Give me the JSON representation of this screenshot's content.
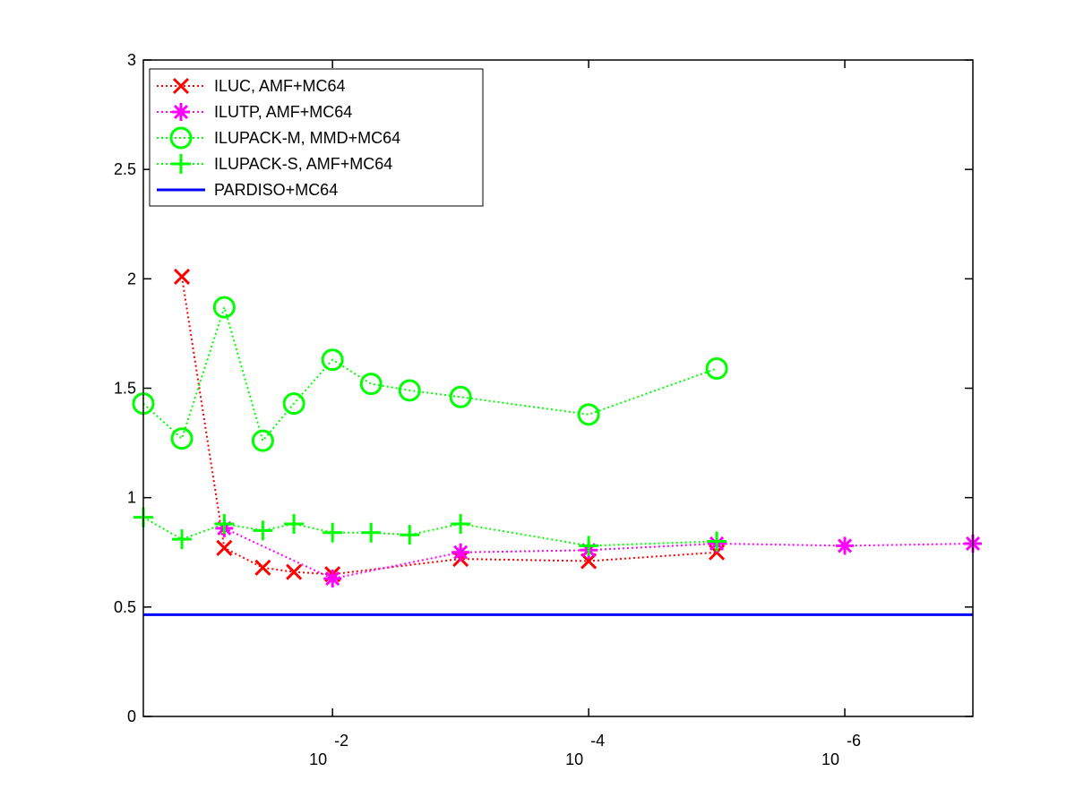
{
  "chart_data": {
    "type": "line",
    "title": "",
    "xlabel": "",
    "ylabel": "",
    "x_scale": "log",
    "x_reversed": true,
    "xlim": [
      0.3,
      1e-07
    ],
    "ylim": [
      0,
      3
    ],
    "yticks": [
      0,
      0.5,
      1,
      1.5,
      2,
      2.5,
      3
    ],
    "xticks": [
      {
        "value": 0.01,
        "base": "10",
        "exp": "-2"
      },
      {
        "value": 0.0001,
        "base": "10",
        "exp": "-4"
      },
      {
        "value": 1e-06,
        "base": "10",
        "exp": "-6"
      }
    ],
    "grid": false,
    "legend": "top-left",
    "series": [
      {
        "name": "ILUC, AMF+MC64",
        "color": "#ff0000",
        "marker": "x",
        "line": "dotted",
        "x": [
          0.15,
          0.07,
          0.035,
          0.02,
          0.01,
          0.001,
          0.0001,
          1e-05
        ],
        "y": [
          2.01,
          0.77,
          0.68,
          0.66,
          0.65,
          0.72,
          0.71,
          0.75
        ]
      },
      {
        "name": "ILUTP, AMF+MC64",
        "color": "#ff00ff",
        "marker": "star",
        "line": "dotted",
        "x": [
          0.07,
          0.01,
          0.001,
          0.0001,
          1e-05,
          1e-06,
          1e-07
        ],
        "y": [
          0.86,
          0.63,
          0.75,
          0.76,
          0.79,
          0.78,
          0.79
        ]
      },
      {
        "name": "ILUPACK-M, MMD+MC64",
        "color": "#00ff00",
        "marker": "circle",
        "line": "dotted",
        "x": [
          0.3,
          0.15,
          0.07,
          0.035,
          0.02,
          0.01,
          0.005,
          0.0025,
          0.001,
          0.0001,
          1e-05
        ],
        "y": [
          1.43,
          1.27,
          1.87,
          1.26,
          1.43,
          1.63,
          1.52,
          1.49,
          1.46,
          1.38,
          1.59
        ]
      },
      {
        "name": "ILUPACK-S, AMF+MC64",
        "color": "#00ff00",
        "marker": "plus",
        "line": "dotted",
        "x": [
          0.3,
          0.15,
          0.07,
          0.035,
          0.02,
          0.01,
          0.005,
          0.0025,
          0.001,
          0.0001,
          1e-05
        ],
        "y": [
          0.91,
          0.81,
          0.88,
          0.85,
          0.88,
          0.84,
          0.84,
          0.83,
          0.88,
          0.78,
          0.8
        ]
      },
      {
        "name": "PARDISO+MC64",
        "color": "#0000ff",
        "marker": "none",
        "line": "solid",
        "x": [
          0.3,
          1e-07
        ],
        "y": [
          0.465,
          0.465
        ]
      }
    ]
  }
}
